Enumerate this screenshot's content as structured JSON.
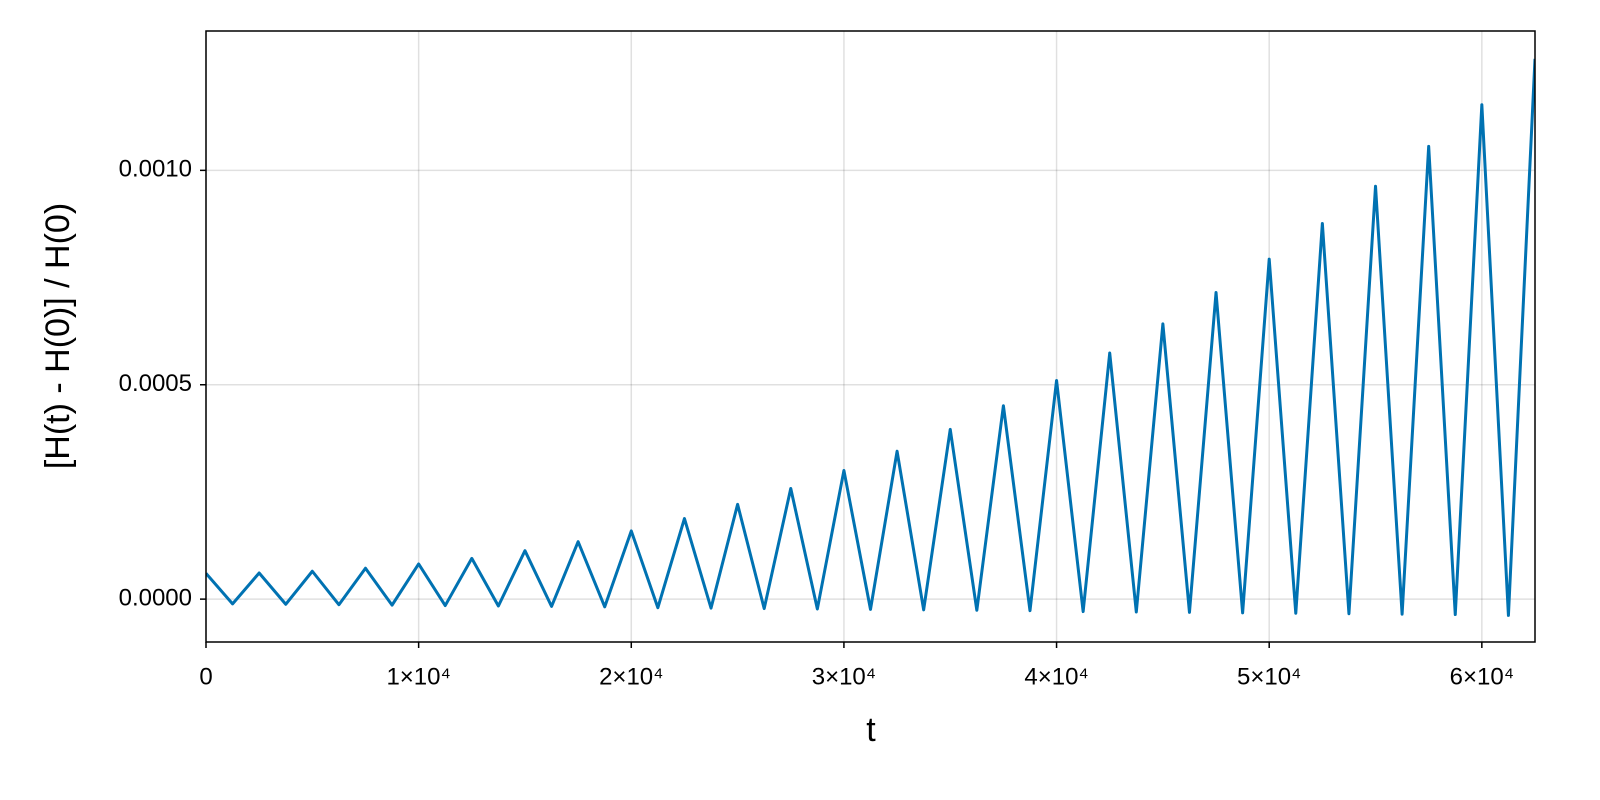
{
  "chart_data": {
    "type": "line",
    "x_label": "t",
    "y_label": "[H(t) - H(0)] / H(0)",
    "x": [
      0,
      1250,
      2500,
      3750,
      5000,
      6250,
      7500,
      8750,
      10000,
      11250,
      12500,
      13750,
      15000,
      16250,
      17500,
      18750,
      20000,
      21250,
      22500,
      23750,
      25000,
      26250,
      27500,
      28750,
      30000,
      31250,
      32500,
      33750,
      35000,
      36250,
      37500,
      38750,
      40000,
      41250,
      42500,
      43750,
      45000,
      46250,
      47500,
      48750,
      50000,
      51250,
      52500,
      53750,
      55000,
      56250,
      57500,
      58750,
      60000,
      61250,
      62500
    ],
    "series": [
      {
        "color": "#0072b2",
        "values": [
          6e-05,
          -1.1e-05,
          6.1e-05,
          -1.2e-05,
          6.5e-05,
          -1.3e-05,
          7.2e-05,
          -1.4e-05,
          8.2e-05,
          -1.5e-05,
          9.5e-05,
          -1.6e-05,
          0.000113,
          -1.7e-05,
          0.000134,
          -1.8e-05,
          0.000159,
          -2e-05,
          0.000188,
          -2.1e-05,
          0.000221,
          -2.2e-05,
          0.000258,
          -2.3e-05,
          0.0003,
          -2.4e-05,
          0.000345,
          -2.5e-05,
          0.000396,
          -2.6e-05,
          0.000451,
          -2.7e-05,
          0.00051,
          -2.9e-05,
          0.000574,
          -3e-05,
          0.000642,
          -3.1e-05,
          0.000715,
          -3.2e-05,
          0.000793,
          -3.3e-05,
          0.000876,
          -3.4e-05,
          0.000963,
          -3.5e-05,
          0.001056,
          -3.6e-05,
          0.001153,
          -3.8e-05,
          0.00126
        ]
      }
    ],
    "xlim": [
      0,
      62500
    ],
    "ylim": [
      -0.0001,
      0.001325
    ],
    "xticks": [
      0,
      {
        "value": 10000,
        "label": "1×10⁴"
      },
      {
        "value": 20000,
        "label": "2×10⁴"
      },
      {
        "value": 30000,
        "label": "3×10⁴"
      },
      {
        "value": 40000,
        "label": "4×10⁴"
      },
      {
        "value": 50000,
        "label": "5×10⁴"
      },
      {
        "value": 60000,
        "label": "6×10⁴"
      }
    ],
    "yticks": [
      {
        "value": 0,
        "label": "0.0000"
      },
      {
        "value": 0.0005,
        "label": "0.0005"
      },
      {
        "value": 0.001,
        "label": "0.0010"
      }
    ],
    "grid": true
  }
}
